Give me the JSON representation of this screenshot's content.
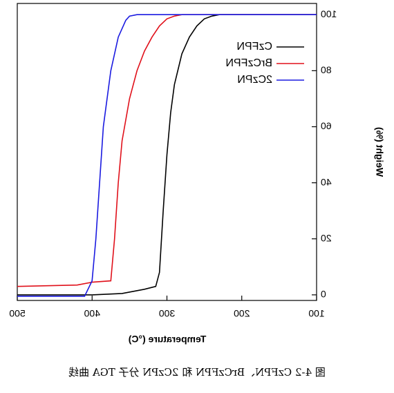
{
  "chart_data": {
    "type": "line",
    "xlabel": "Temperature (°C)",
    "ylabel": "Weight (%)",
    "caption": "图 4-2 CzFPN、BrCzFPN 和 2CzPN 分子 TGA 曲线",
    "series": [
      {
        "name": "CzFPN",
        "color": "#000000",
        "x": [
          500,
          400,
          360,
          330,
          315,
          310,
          305,
          300,
          295,
          290,
          280,
          270,
          260,
          250,
          240,
          230,
          100
        ],
        "values": [
          0,
          0,
          0.5,
          2,
          3,
          8,
          30,
          50,
          65,
          75,
          86,
          92,
          96,
          98.5,
          99.5,
          100,
          100
        ]
      },
      {
        "name": "BrCzFPN",
        "color": "#e0101a",
        "x": [
          500,
          420,
          400,
          375,
          370,
          365,
          360,
          350,
          340,
          330,
          320,
          310,
          300,
          290,
          280,
          100
        ],
        "values": [
          3,
          3.5,
          4.5,
          5,
          20,
          40,
          55,
          70,
          80,
          87,
          92,
          96,
          98.5,
          99.5,
          100,
          100
        ]
      },
      {
        "name": "2CzPN",
        "color": "#1a1ae0",
        "x": [
          500,
          410,
          400,
          395,
          390,
          385,
          375,
          365,
          355,
          350,
          340,
          100
        ],
        "values": [
          -0.5,
          -0.5,
          5,
          20,
          40,
          60,
          80,
          92,
          98,
          99.5,
          100,
          100
        ]
      }
    ],
    "xlim": [
      100,
      500
    ],
    "xticks": [
      100,
      200,
      300,
      400,
      500
    ],
    "ylim": [
      -2,
      104
    ],
    "yticks": [
      0,
      20,
      40,
      60,
      80,
      100
    ],
    "grid": false,
    "mirrored": true
  }
}
